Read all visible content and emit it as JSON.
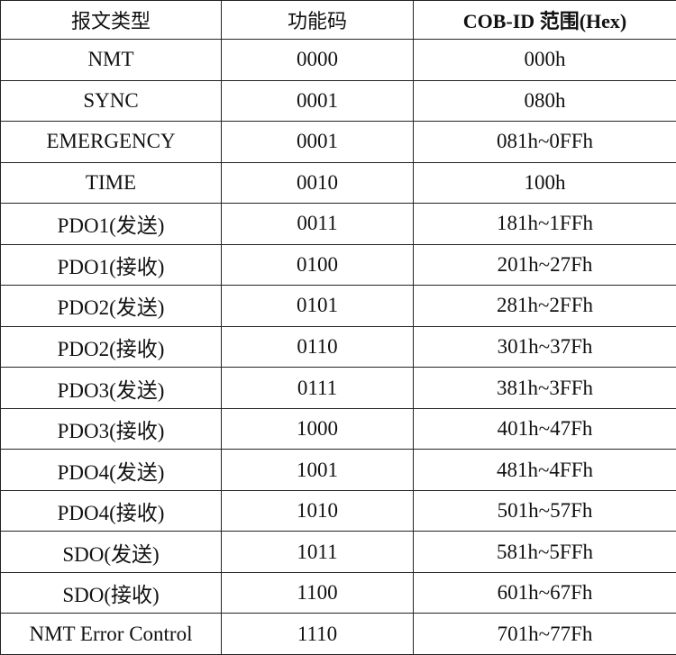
{
  "table": {
    "header": [
      "报文类型",
      "功能码",
      "COB-ID 范围(Hex)"
    ],
    "rows": [
      [
        "NMT",
        "0000",
        "000h"
      ],
      [
        "SYNC",
        "0001",
        "080h"
      ],
      [
        "EMERGENCY",
        "0001",
        "081h~0FFh"
      ],
      [
        "TIME",
        "0010",
        "100h"
      ],
      [
        "PDO1(发送)",
        "0011",
        "181h~1FFh"
      ],
      [
        "PDO1(接收)",
        "0100",
        "201h~27Fh"
      ],
      [
        "PDO2(发送)",
        "0101",
        "281h~2FFh"
      ],
      [
        "PDO2(接收)",
        "0110",
        "301h~37Fh"
      ],
      [
        "PDO3(发送)",
        "0111",
        "381h~3FFh"
      ],
      [
        "PDO3(接收)",
        "1000",
        "401h~47Fh"
      ],
      [
        "PDO4(发送)",
        "1001",
        "481h~4FFh"
      ],
      [
        "PDO4(接收)",
        "1010",
        "501h~57Fh"
      ],
      [
        "SDO(发送)",
        "1011",
        "581h~5FFh"
      ],
      [
        "SDO(接收)",
        "1100",
        "601h~67Fh"
      ],
      [
        "NMT Error Control",
        "1110",
        "701h~77Fh"
      ]
    ]
  }
}
